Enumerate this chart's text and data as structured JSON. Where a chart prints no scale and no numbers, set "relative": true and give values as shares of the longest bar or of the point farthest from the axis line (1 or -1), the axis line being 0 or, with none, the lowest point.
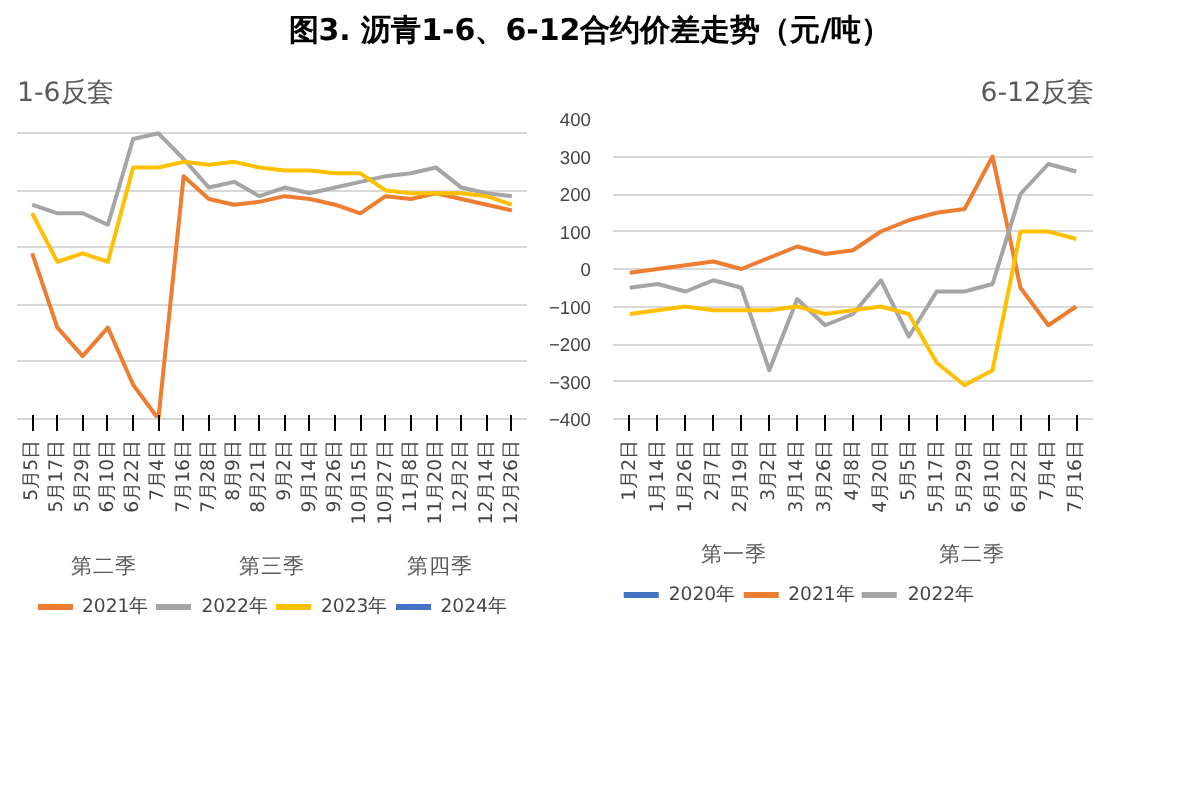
{
  "chart_data": [
    {
      "type": "line",
      "title": "图3. 沥青1-6、6-12合约价差走势（元/吨）",
      "subtitle": "1-6反套",
      "relative": true,
      "grid": "y",
      "legend": "bottom",
      "categories": [
        "5月5日",
        "5月17日",
        "5月29日",
        "6月10日",
        "6月22日",
        "7月4日",
        "7月16日",
        "7月28日",
        "8月9日",
        "8月21日",
        "9月2日",
        "9月14日",
        "9月26日",
        "10月15日",
        "10月27日",
        "11月8日",
        "11月20日",
        "12月2日",
        "12月14日",
        "12月26日"
      ],
      "series": [
        {
          "name": "2021年",
          "color": "#ed7d31",
          "values": [
            0.58,
            0.32,
            0.22,
            0.32,
            0.12,
            0,
            0.85,
            0.77,
            0.75,
            0.76,
            0.78,
            0.77,
            0.75,
            0.72,
            0.78,
            0.77,
            0.79,
            0.77,
            0.75,
            0.73
          ]
        },
        {
          "name": "2022年",
          "color": "#a5a5a5",
          "values": [
            0.75,
            0.72,
            0.72,
            0.68,
            0.98,
            1,
            0.91,
            0.81,
            0.83,
            0.78,
            0.81,
            0.79,
            0.81,
            0.83,
            0.85,
            0.86,
            0.88,
            0.81,
            0.79,
            0.78
          ]
        },
        {
          "name": "2023年",
          "color": "#ffc000",
          "values": [
            0.72,
            0.55,
            0.58,
            0.55,
            0.88,
            0.88,
            0.9,
            0.89,
            0.9,
            0.88,
            0.87,
            0.87,
            0.86,
            0.86,
            0.8,
            0.79,
            0.79,
            0.79,
            0.78,
            0.75
          ]
        },
        {
          "name": "2024年",
          "color": "#4472c4",
          "values": [
            null,
            null,
            null,
            null,
            null,
            null,
            null,
            null,
            null,
            null,
            null,
            null,
            null,
            null,
            null,
            null,
            null,
            null,
            null,
            null
          ]
        }
      ],
      "annotations": [
        "第二季",
        "第三季",
        "第四季"
      ]
    },
    {
      "type": "line",
      "subtitle": "6-12反套",
      "grid": "y",
      "legend": "bottom",
      "ylim": [
        -400,
        400
      ],
      "yticks": [
        -400,
        -300,
        -200,
        -100,
        0,
        100,
        200,
        300,
        400
      ],
      "categories": [
        "1月2日",
        "1月14日",
        "1月26日",
        "2月7日",
        "2月19日",
        "3月2日",
        "3月14日",
        "3月26日",
        "4月8日",
        "4月20日",
        "5月5日",
        "5月17日",
        "5月29日",
        "6月10日",
        "6月22日",
        "7月4日",
        "7月16日"
      ],
      "series": [
        {
          "name": "2020年",
          "color": "#4472c4",
          "values": [
            null,
            null,
            null,
            null,
            null,
            null,
            null,
            null,
            null,
            null,
            null,
            null,
            null,
            null,
            null,
            null,
            null
          ]
        },
        {
          "name": "2021年",
          "color": "#ed7d31",
          "values": [
            -10,
            0,
            10,
            20,
            0,
            30,
            60,
            40,
            50,
            100,
            130,
            150,
            160,
            300,
            -50,
            -150,
            -100
          ]
        },
        {
          "name": "2022年",
          "color": "#a5a5a5",
          "values": [
            -50,
            -40,
            -60,
            -30,
            -50,
            -270,
            -80,
            -150,
            -120,
            -30,
            -180,
            -60,
            -60,
            -40,
            200,
            280,
            260
          ]
        },
        {
          "color": "#ffc000",
          "values": [
            -120,
            -110,
            -100,
            -110,
            -110,
            -110,
            -100,
            -120,
            -110,
            -100,
            -120,
            -250,
            -310,
            -270,
            100,
            100,
            80
          ]
        }
      ],
      "annotations": [
        "第一季",
        "第二季"
      ]
    }
  ]
}
